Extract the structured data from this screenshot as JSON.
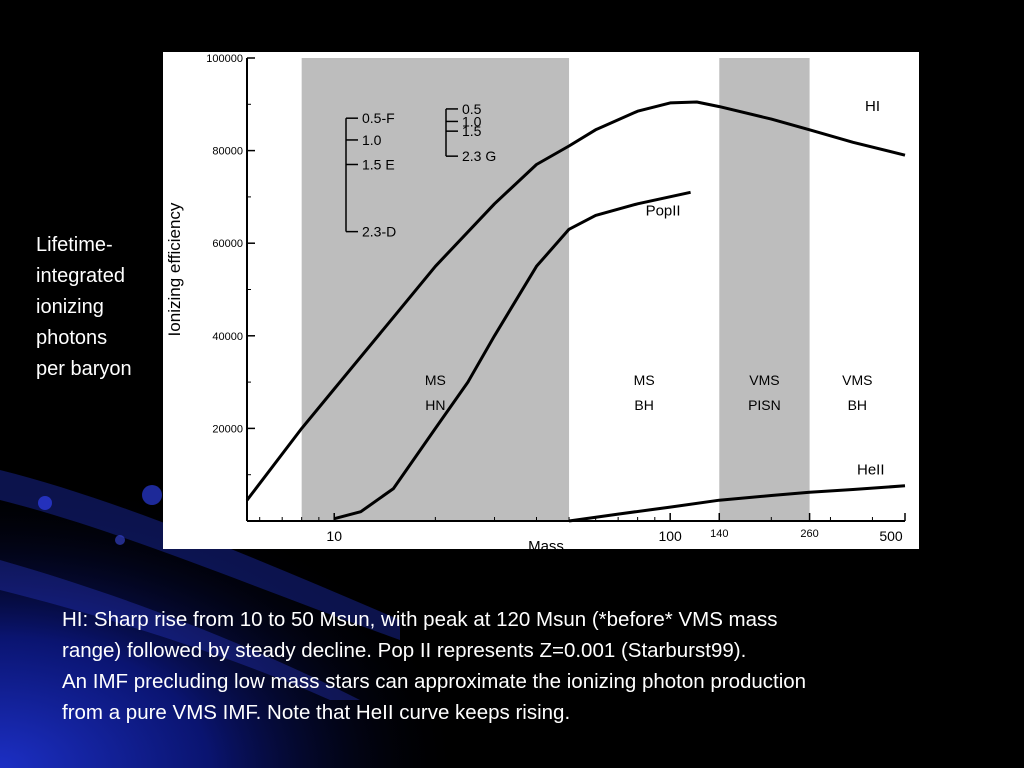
{
  "slide": {
    "side_label": [
      "Lifetime-",
      "integrated",
      "ionizing",
      "photons",
      "per baryon"
    ],
    "caption": [
      "HI: Sharp rise from 10 to 50 Msun, with peak at 120 Msun (*before* VMS mass",
      "range) followed by steady decline. Pop II represents Z=0.001 (Starburst99).",
      "An IMF precluding low mass stars can approximate the ionizing photon production",
      "from a pure VMS IMF. Note that HeII curve keeps rising."
    ]
  },
  "chart_data": {
    "type": "line",
    "xlabel": "Mass",
    "ylabel": "Ionizing efficiency",
    "x_scale": "log",
    "xlim": [
      5.5,
      500
    ],
    "ylim": [
      0,
      100000
    ],
    "x_ticks": [
      "10",
      "100",
      "140",
      "260",
      "500"
    ],
    "y_ticks": [
      "20000",
      "40000",
      "60000",
      "80000",
      "100000"
    ],
    "series": [
      {
        "name": "HI",
        "x": [
          5.5,
          8,
          10,
          15,
          20,
          30,
          40,
          50,
          60,
          80,
          100,
          120,
          140,
          200,
          260,
          350,
          500
        ],
        "y": [
          4500,
          20000,
          28500,
          44000,
          55000,
          68500,
          77000,
          81000,
          84500,
          88500,
          90300,
          90500,
          89500,
          86800,
          84500,
          81800,
          79000
        ]
      },
      {
        "name": "PopII",
        "x": [
          10,
          12,
          15,
          20,
          25,
          30,
          40,
          50,
          60,
          80,
          115
        ],
        "y": [
          500,
          2000,
          7000,
          20000,
          30000,
          40000,
          55000,
          63000,
          66000,
          68500,
          71000
        ]
      },
      {
        "name": "HeII",
        "x": [
          50,
          70,
          100,
          140,
          200,
          260,
          350,
          500
        ],
        "y": [
          0,
          1500,
          3000,
          4500,
          5500,
          6200,
          6800,
          7600
        ]
      }
    ],
    "shaded_regions": [
      {
        "x_range": [
          8,
          50
        ],
        "label_lines": [
          "MS",
          "HN"
        ]
      },
      {
        "x_range": [
          50,
          140
        ],
        "label_lines": [
          "MS",
          "BH"
        ]
      },
      {
        "x_range": [
          140,
          260
        ],
        "label_lines": [
          "VMS",
          "PISN"
        ]
      },
      {
        "x_range": [
          260,
          500
        ],
        "label_lines": [
          "VMS",
          "BH"
        ]
      }
    ],
    "bracket_legend": [
      {
        "labels": [
          "0.5-F",
          "1.0",
          "1.5 E",
          "2.3-D"
        ],
        "y_values": [
          87000,
          82300,
          77000,
          62500
        ]
      },
      {
        "labels": [
          "0.5",
          "1.0",
          "1.5",
          "2.3 G"
        ],
        "y_values": [
          89000,
          86300,
          84200,
          78800
        ]
      }
    ]
  }
}
